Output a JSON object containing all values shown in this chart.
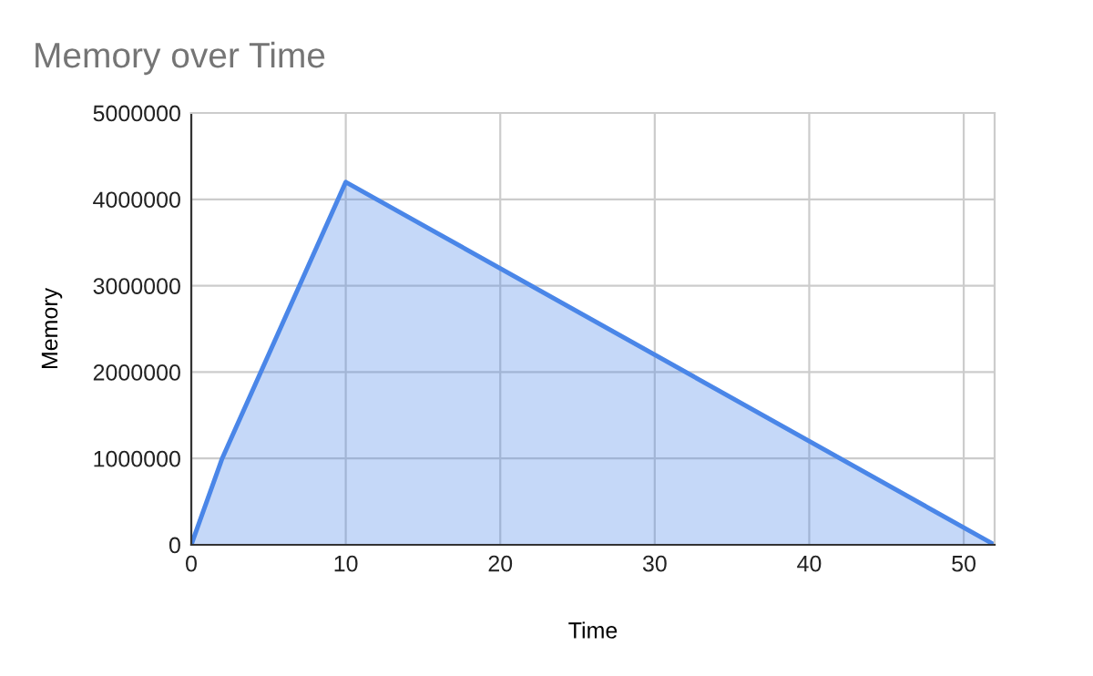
{
  "chart_data": {
    "type": "area",
    "title": "Memory over Time",
    "xlabel": "Time",
    "ylabel": "Memory",
    "x": [
      0,
      2,
      10,
      52
    ],
    "series": [
      {
        "color": "#4a86e8",
        "values": [
          0,
          1000000,
          4200000,
          0
        ]
      }
    ],
    "xlim": [
      0,
      52
    ],
    "xticks": [
      0,
      10,
      20,
      30,
      40,
      50
    ],
    "ylim": [
      0,
      5000000
    ],
    "yticks": [
      0,
      1000000,
      2000000,
      3000000,
      4000000,
      5000000
    ],
    "grid": true,
    "marker": "none",
    "line_style": "solid"
  }
}
